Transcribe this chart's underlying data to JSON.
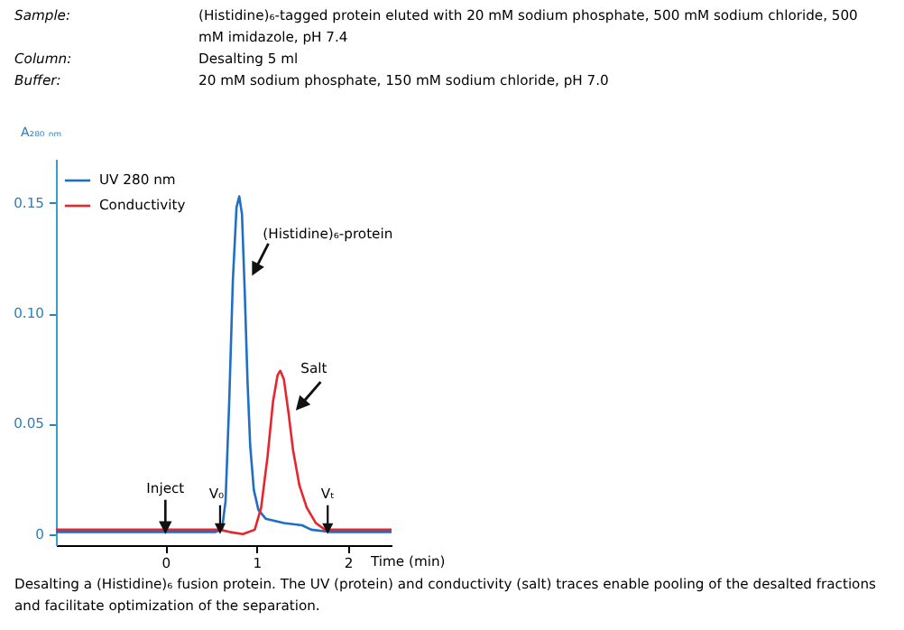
{
  "chart_data": {
    "type": "line",
    "xlabel": "Time (min)",
    "ylabel": "A₂₈₀ ₙₘ",
    "xlim": [
      -1.2,
      2.48
    ],
    "xticks": [
      0,
      1,
      2
    ],
    "ylim": [
      -0.005,
      0.17
    ],
    "yticks": [
      {
        "value": 0,
        "label": "0"
      },
      0.05,
      {
        "value": 0.1,
        "label": "0.10"
      },
      0.15
    ],
    "grid": false,
    "legend": "top left",
    "marker": "none",
    "line_style": "solid",
    "series": [
      {
        "name": "UV 280 nm",
        "color": "#1f6fc4",
        "x": [
          -1.2,
          0.55,
          0.62,
          0.66,
          0.7,
          0.74,
          0.78,
          0.81,
          0.84,
          0.87,
          0.9,
          0.93,
          0.97,
          1.02,
          1.1,
          1.3,
          1.5,
          1.6,
          1.8,
          2.48
        ],
        "values": [
          0.001,
          0.001,
          0.002,
          0.015,
          0.06,
          0.115,
          0.148,
          0.153,
          0.145,
          0.11,
          0.07,
          0.04,
          0.02,
          0.011,
          0.007,
          0.005,
          0.004,
          0.002,
          0.001,
          0.001
        ]
      },
      {
        "name": "Conductivity",
        "color": "#e8252c",
        "x": [
          -1.2,
          0.6,
          0.7,
          0.85,
          0.98,
          1.05,
          1.12,
          1.18,
          1.23,
          1.26,
          1.3,
          1.35,
          1.4,
          1.47,
          1.55,
          1.65,
          1.75,
          2.48
        ],
        "values": [
          0.002,
          0.002,
          0.001,
          0.0,
          0.002,
          0.012,
          0.035,
          0.06,
          0.072,
          0.074,
          0.07,
          0.055,
          0.038,
          0.022,
          0.012,
          0.005,
          0.002,
          0.002
        ]
      }
    ],
    "annotations": [
      "Sample:",
      "(Histidine)₆-tagged protein eluted with 20 mM sodium phosphate, 500 mM sodium chloride, 500 mM imidazole, pH 7.4",
      "Column:",
      "Desalting 5 ml",
      "Buffer:",
      "20 mM sodium phosphate, 150 mM sodium chloride, pH 7.0",
      {
        "text": "Inject",
        "x": 0,
        "y": 0
      },
      {
        "text": "V₀",
        "x": 0.6,
        "y": 0
      },
      {
        "text": "Vₜ",
        "x": 1.78,
        "y": 0
      },
      {
        "text": "(Histidine)₆-protein",
        "x": 0.95,
        "y": 0.117
      },
      {
        "text": "Salt",
        "x": 1.43,
        "y": 0.056
      },
      "Desalting a (Histidine)₆ fusion protein. The UV (protein) and conductivity (salt) traces enable pooling of the desalted fractions and facilitate optimization of the separation."
    ]
  }
}
